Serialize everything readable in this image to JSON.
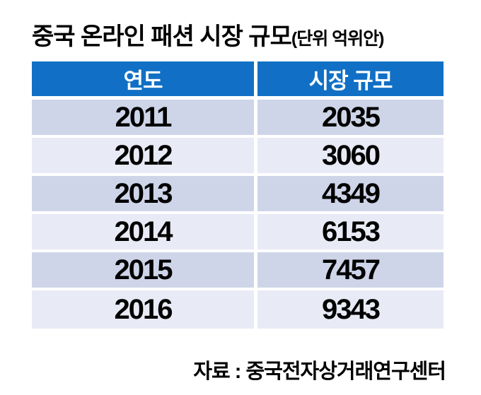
{
  "title": {
    "main": "중국 온라인 패션 시장 규모",
    "unit": "(단위 억위안)"
  },
  "table": {
    "columns": [
      "연도",
      "시장 규모"
    ],
    "rows": [
      {
        "year": "2011",
        "value": "2035"
      },
      {
        "year": "2012",
        "value": "3060"
      },
      {
        "year": "2013",
        "value": "4349"
      },
      {
        "year": "2014",
        "value": "6153"
      },
      {
        "year": "2015",
        "value": "7457"
      },
      {
        "year": "2016",
        "value": "9343"
      }
    ]
  },
  "source": "자료 : 중국전자상거래연구센터",
  "colors": {
    "background": "#FFFFFF",
    "header_bg": "#1170C5",
    "header_text": "#FFFFFF",
    "row_dark": "#CED5E8",
    "row_light": "#E8EBF5",
    "body_text": "#000000"
  },
  "chart_data": {
    "type": "table",
    "title": "중국 온라인 패션 시장 규모",
    "title_unit": "(단위 억위안)",
    "columns": [
      "연도",
      "시장 규모"
    ],
    "rows": [
      [
        2011,
        2035
      ],
      [
        2012,
        3060
      ],
      [
        2013,
        4349
      ],
      [
        2014,
        6153
      ],
      [
        2015,
        7457
      ],
      [
        2016,
        9343
      ]
    ],
    "source": "자료 : 중국전자상거래연구센터"
  }
}
